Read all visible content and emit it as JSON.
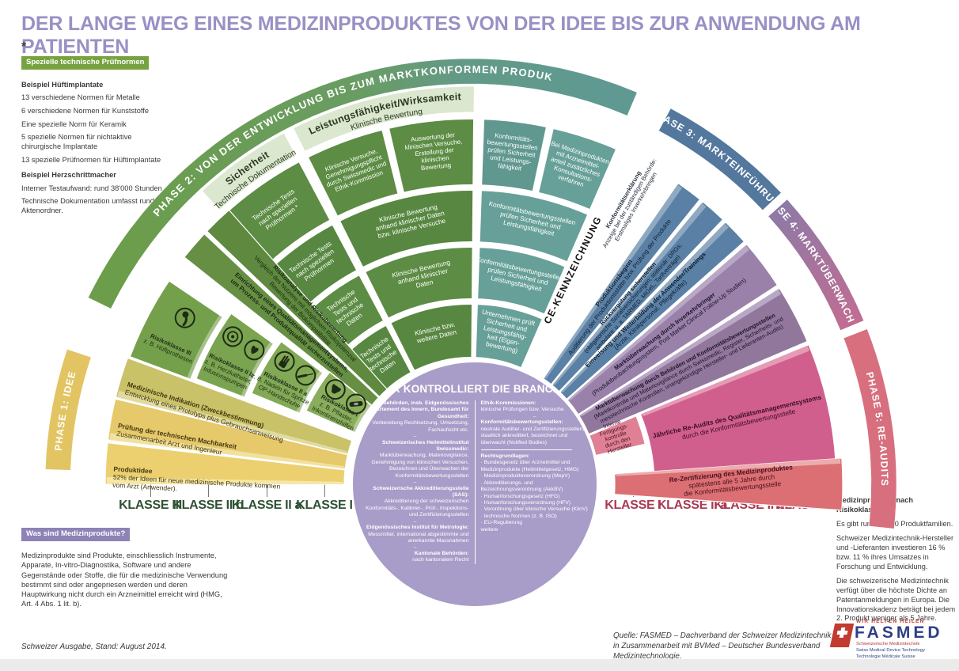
{
  "title": "DER LANGE WEG EINES MEDIZINPRODUKTES VON DER IDEE BIS ZUR ANWENDUNG AM PATIENTEN",
  "colors": {
    "title": "#9a90c5",
    "badge_green": "#77a23f",
    "badge_purple": "#8e82b6",
    "grid_green": "#5d8c44",
    "teal": "#67a098",
    "circle": "#a89cc8",
    "blue": "#5a80a5",
    "purple": "#9a81aa",
    "pink": "#d15f8d",
    "salmon": "#dc6f73",
    "yellow": "#ecd06f",
    "arc_p3": "#54789d",
    "arc_p5": "#d76f7f",
    "arc_p1": "#e2c463",
    "klasse_left_label": "#2f5233",
    "klasse_right_label": "#a83a54",
    "fasmed_red": "#c23a30",
    "fasmed_blue": "#2e3f85"
  },
  "sidebar": {
    "asterisk": "*",
    "badge": "Spezielle technische Prüfnormen",
    "items": [
      "Beispiel Hüftimplantate",
      "13 verschiedene Normen für Metalle",
      "6 verschiedene Normen für Kunststoffe",
      "Eine spezielle Norm für Keramik",
      "5 spezielle Normen für nichtaktive chirurgische Implantate",
      "13 spezielle Prüfnormen für Hüftimplantate",
      "Beispiel Herzschrittmacher",
      "Interner Testaufwand: rund 38'000 Stunden",
      "Technische Dokumentation umfasst rund 7 Aktenordner."
    ]
  },
  "was_sind": {
    "badge": "Was sind Medizinprodukte?",
    "body": "Medizinprodukte sind Produkte, einschliesslich Instrumente, Apparate, In-vitro-Diagnostika, Software und andere Gegenstände oder Stoffe, die für die medizinische Verwendung bestimmt sind oder angepriesen werden und deren Hauptwirkung nicht durch ein Arzneimittel erreicht wird (HMG, Art. 4 Abs. 1 lit. b)."
  },
  "edition": "Schweizer Ausgabe, Stand: August 2014.",
  "source": [
    "Quelle: FASMED – Dachverband der Schweizer Medizintechnik",
    "in Zusammenarbeit mit BVMed – Deutscher Bundesverband Medizintechnologie."
  ],
  "logo": {
    "flag_icon": "swiss-cross-flag-icon",
    "tagline": "WIR HELFEN HEILEN",
    "name": "FASMED",
    "subs": [
      "Schweizerische Medizintechnik",
      "Swiss Medical Device Technology",
      "Technologie Médicale Suisse"
    ]
  },
  "right_info": {
    "heading": "Medizinprodukte nach Risikoklassen",
    "paras": [
      "Es gibt rund 10'000 Produktfamilien.",
      "Schweizer Medizintechnik-Hersteller und -Lieferanten investieren 16 % bzw. 11 % ihres Umsatzes in Forschung und Entwicklung.",
      "Die schweizerische Medizintechnik verfügt über die höchste Dichte an Patentanmeldungen in Europa. Die Innovationskadenz beträgt bei jedem 2. Produkt weniger als 5 Jahre."
    ]
  },
  "klasse_axis": {
    "left": [
      "KLASSE III",
      "KLASSE II b",
      "KLASSE II a",
      "KLASSE I"
    ],
    "right": [
      "KLASSE I",
      "KLASSE II a",
      "KLASSE II b",
      "KLASSE III"
    ]
  },
  "fan": {
    "phases": {
      "p1": "PHASE 1: IDEE",
      "p2": "PHASE 2: VON DER ENTWICKLUNG BIS ZUM MARKTKONFORMEN PRODUKT",
      "p3": "PHASE 3: MARKTEINFÜHRUNG",
      "p4": "PHASE 4: MARKTÜBERWACHUNG",
      "p5": "PHASE 5: RE-AUDITS"
    },
    "ce_label": "CE-KENNZEICHNUNG",
    "konformitaetserklaerung": [
      "Konformitätserklärung",
      "Anzeige bei der zuständigen Behörde:",
      "Erstmaliges Inverkehrbringen"
    ],
    "headers": {
      "sicherheit": [
        "Sicherheit",
        "Technische Dokumentation"
      ],
      "leistung": [
        "Leistungsfähigkeit/Wirksamkeit",
        "Klinische Bewertung"
      ]
    },
    "cells": {
      "s1": [
        "Technische Tests",
        "nach speziellen",
        "Prüfnormen *"
      ],
      "s2": [
        "Technische Tests",
        "nach speziellen",
        "Prüfnormen"
      ],
      "s3": [
        "Technische",
        "Tests und",
        "technische",
        "Daten"
      ],
      "s4": [
        "Technische",
        "Tests und",
        "technische",
        "Daten"
      ],
      "l1a": [
        "Klinische Versuche,",
        "Genehmigungspflicht",
        "durch Swissmedic und",
        "Ethik-Kommission"
      ],
      "l1b": [
        "Auswertung der",
        "klinischen Versuche,",
        "Erstellung der",
        "klinischen",
        "Bewertung"
      ],
      "l2": [
        "Klinische Bewertung",
        "anhand klinischer Daten",
        "bzw. klinische Versuche"
      ],
      "l3": [
        "Klinische Bewertung",
        "anhand klinischer",
        "Daten"
      ],
      "l4": [
        "Klinische bzw.",
        "weitere Daten"
      ],
      "t1a": [
        "Konformitäts-",
        "bewertungsstellen",
        "prüfen Sicherheit",
        "und Leistungs-",
        "fähigkeit"
      ],
      "t1b": [
        "Bei Medizinprodukten",
        "mit Arzneimittel-",
        "anteil zusätzliches",
        "Konsultations-",
        "verfahren"
      ],
      "t2": [
        "Konformitätsbewertungsstellen",
        "prüfen Sicherheit und",
        "Leistungsfähigkeit"
      ],
      "t3": [
        "Konformitätsbewertungsstellen",
        "prüfen Sicherheit und",
        "Leistungsfähigkeit"
      ],
      "t4": [
        "Unternehmen prüft",
        "Sicherheit und",
        "Leistungsfähig-",
        "keit (Eigen-",
        "bewertung)"
      ]
    },
    "wedges": {
      "produktidee": [
        "Produktidee",
        "52% der Ideen für neue medizinische Produkte kommen",
        "vom Arzt (Anwender)."
      ],
      "machbarkeit": [
        "Prüfung der technischen Machbarkeit",
        "Zusammenarbeit Arzt und Ingenieur"
      ],
      "indikation": [
        "Medizinische Indikation (Zweckbestimmung)",
        "Entwicklung eines Prototyps plus Gebrauchsanweisung"
      ],
      "qm": [
        "Einrichtung eines Qualitätsmanagementsystems,",
        "um Prozess- und Produktqualität sicherzustellen"
      ],
      "risiko": [
        "Risikoanalyse und Risikobewertung",
        "Vergleich des Nutzens mit möglichem Risikopotenzial",
        "Bewertung der Biokompatibilität"
      ],
      "blau1": [
        "Produktionsbeginn",
        "Auditierung der Produktionsstätte bzw. Prüfung der Produkte"
      ],
      "blau2": [
        "Rückvergütung sicherstellen",
        "(obligatorische Sozialversicherungen; stationär: DRGs;",
        "ambulant: u. a. TARMED, MiGeL, Tarifverträge)"
      ],
      "blau3": [
        "Einweisung und Weiterbildung der Anwender/Trainings",
        "(Ärzte, Klinikpersonal, Pflegekräfte)"
      ],
      "lila1": [
        "Marktüberwachung durch Inverkehrbringer",
        "(Produktbeobachtungssystem, Post Market Clinical Follow-Up Studien)"
      ],
      "lila2": [
        "Marktüberwachung durch Behörden und Konformitätsbewertungsstellen",
        "(Marktkontrolle und Materiovigilance durch Swissmedic, Register, Sicherheits- und",
        "messtechnische Kontrollen, unangekündigte Hersteller- und Lieferanten-Audits)"
      ],
      "intern": [
        "Interne",
        "Fertigungs-",
        "kontrolle",
        "durch den",
        "Hersteller"
      ],
      "jaehrlich": [
        "Jährliche Re-Audits des Qualitätsmanagementsystems",
        "durch die Konformitätsbewertungsstelle"
      ],
      "rezert": [
        "Re-Zertifizierung des Medizinproduktes",
        "spätestens alle 5 Jahre durch",
        "die Konformitätsbewertungsstelle"
      ]
    },
    "klassen": [
      {
        "label": [
          "Risikoklasse III",
          "z. B. Hüftprothesen"
        ],
        "icons": [
          "hip-prosthesis-icon"
        ]
      },
      {
        "label": [
          "Risikoklasse II b",
          "z. B. Herzkatheter,",
          "Infusionspumpen"
        ],
        "icons": [
          "heart-catheter-icon",
          "infusion-pump-icon"
        ]
      },
      {
        "label": [
          "Risikoklasse II a",
          "z. B. Nadeln für Spritzen,",
          "OP-Handschuhe"
        ],
        "icons": [
          "syringe-needle-icon",
          "surgical-glove-icon"
        ]
      },
      {
        "label": [
          "Risikoklasse I",
          "z. B. Pflaster,",
          "Inkontinenzhilfen"
        ],
        "icons": [
          "plaster-icon",
          "incontinence-aid-icon"
        ]
      }
    ]
  },
  "circle": {
    "title": "WER KONTROLLIERT DIE BRANCHE?",
    "separator": "–",
    "left": [
      {
        "head": "Bundesbehörden, insb. Eidgenössisches Departement des Innern, Bundesamt für Gesundheit:",
        "body": "Vorbereitung Rechtsetzung, Umsetzung, Fachaufsicht etc."
      },
      {
        "head": "Schweizerisches Heilmittelinstitut Swissmedic:",
        "body": "Marktüberwachung, Materiovigilance, Genehmigung von klinischen Versuchen, Bezeichnen und Überwachen der Konformitätsbewertungsstellen"
      },
      {
        "head": "Schweizerische Akkreditierungsstelle (SAS):",
        "body": "Akkreditierung der schweizerischen Konformitäts-, Kalibrier-, Prüf-, Inspektions- und Zertifizierungsstellen"
      },
      {
        "head": "Eidgenössisches Institut für Metrologie:",
        "body": "Messmittel, international abgestimmte und anerkannte Massnahmen"
      },
      {
        "head": "Kantonale Behörden:",
        "body": "nach kantonalem Recht"
      }
    ],
    "right": [
      {
        "head": "Ethik-Kommissionen:",
        "body": "klinische Prüfungen bzw. Versuche"
      },
      {
        "head": "Konformitätsbewertungsstellen:",
        "body": "neutrale Auditier- und Zertifizierungsstellen, staatlich akkreditiert, bezeichnet und überwacht (Notified Bodies)"
      }
    ],
    "rechtsgrundlagen": {
      "head": "Rechtsgrundlagen:",
      "items": [
        "Bundesgesetz über Arzneimittel und Medizinprodukte (Heilmittelgesetz, HMG)",
        "Medizinprodukteverordnung (MepV)",
        "Akkreditierungs- und Bezeichnungsverordnung (AkkBV)",
        "Humanforschungsgesetz (HFG)",
        "Humanforschungsverordnung (HFV)",
        "Verordnung über klinische Versuche (KlinV)",
        "technische Normen (z. B. ISO)",
        "EU-Regulierung"
      ],
      "footer": "weitere"
    }
  }
}
